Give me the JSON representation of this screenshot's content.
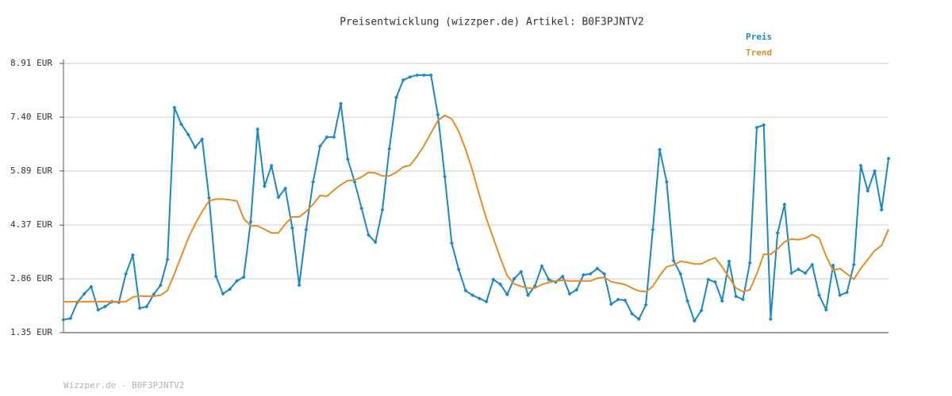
{
  "chart_data": {
    "type": "line",
    "title": "Preisentwicklung (wizzper.de) Artikel: B0F3PJNTV2",
    "footer": "Wizzper.de - B0F3PJNTV2",
    "ylim": [
      1.35,
      8.91
    ],
    "yticks": [
      {
        "value": 1.35,
        "label": "1.35 EUR"
      },
      {
        "value": 2.86,
        "label": "2.86 EUR"
      },
      {
        "value": 4.37,
        "label": "4.37 EUR"
      },
      {
        "value": 5.89,
        "label": "5.89 EUR"
      },
      {
        "value": 7.4,
        "label": "7.40 EUR"
      },
      {
        "value": 8.91,
        "label": "8.91 EUR"
      }
    ],
    "grid": true,
    "legend": "top-right",
    "series": [
      {
        "name": "Preis",
        "color": "#1b87c6",
        "markers": true,
        "values": [
          1.71,
          1.75,
          2.2,
          2.44,
          2.64,
          1.99,
          2.08,
          2.22,
          2.2,
          3.0,
          3.53,
          2.04,
          2.08,
          2.42,
          2.68,
          3.4,
          7.67,
          7.2,
          6.91,
          6.55,
          6.78,
          5.13,
          2.93,
          2.44,
          2.57,
          2.8,
          2.91,
          4.46,
          7.06,
          5.46,
          6.04,
          5.15,
          5.4,
          4.29,
          2.68,
          4.24,
          5.58,
          6.58,
          6.84,
          6.84,
          7.78,
          6.22,
          5.58,
          4.84,
          4.09,
          3.89,
          4.8,
          6.51,
          7.95,
          8.44,
          8.53,
          8.58,
          8.58,
          8.58,
          7.47,
          5.73,
          3.86,
          3.13,
          2.53,
          2.4,
          2.31,
          2.22,
          2.84,
          2.71,
          2.42,
          2.86,
          3.06,
          2.4,
          2.66,
          3.22,
          2.84,
          2.77,
          2.93,
          2.44,
          2.55,
          2.97,
          3.0,
          3.15,
          3.0,
          2.15,
          2.28,
          2.26,
          1.88,
          1.73,
          2.13,
          4.24,
          6.49,
          5.58,
          3.37,
          3.0,
          2.24,
          1.68,
          1.97,
          2.84,
          2.77,
          2.24,
          3.35,
          2.37,
          2.28,
          3.31,
          7.11,
          7.18,
          1.73,
          4.15,
          4.95,
          3.02,
          3.13,
          3.02,
          3.26,
          2.4,
          1.99,
          3.24,
          2.4,
          2.48,
          3.26,
          6.04,
          5.33,
          5.89,
          4.8,
          6.24
        ]
      },
      {
        "name": "Trend",
        "color": "#e48d25",
        "markers": false,
        "values": [
          2.22,
          2.22,
          2.22,
          2.22,
          2.22,
          2.22,
          2.22,
          2.22,
          2.22,
          2.22,
          2.35,
          2.38,
          2.37,
          2.37,
          2.4,
          2.53,
          3.0,
          3.5,
          4.0,
          4.4,
          4.75,
          5.05,
          5.1,
          5.1,
          5.08,
          5.05,
          4.55,
          4.35,
          4.35,
          4.25,
          4.15,
          4.15,
          4.4,
          4.6,
          4.6,
          4.75,
          4.95,
          5.2,
          5.18,
          5.35,
          5.5,
          5.62,
          5.63,
          5.72,
          5.85,
          5.83,
          5.75,
          5.75,
          5.85,
          6.0,
          6.05,
          6.3,
          6.6,
          6.95,
          7.3,
          7.45,
          7.35,
          7.0,
          6.5,
          5.9,
          5.2,
          4.55,
          4.0,
          3.45,
          2.95,
          2.72,
          2.65,
          2.6,
          2.6,
          2.7,
          2.76,
          2.8,
          2.82,
          2.8,
          2.8,
          2.8,
          2.8,
          2.88,
          2.9,
          2.78,
          2.74,
          2.7,
          2.6,
          2.52,
          2.5,
          2.65,
          2.95,
          3.2,
          3.25,
          3.35,
          3.32,
          3.28,
          3.28,
          3.38,
          3.45,
          3.2,
          2.9,
          2.6,
          2.5,
          2.55,
          3.0,
          3.55,
          3.55,
          3.7,
          3.9,
          3.98,
          3.96,
          4.0,
          4.1,
          4.0,
          3.5,
          3.1,
          3.15,
          3.0,
          2.85,
          3.15,
          3.4,
          3.65,
          3.8,
          4.25
        ]
      }
    ]
  }
}
